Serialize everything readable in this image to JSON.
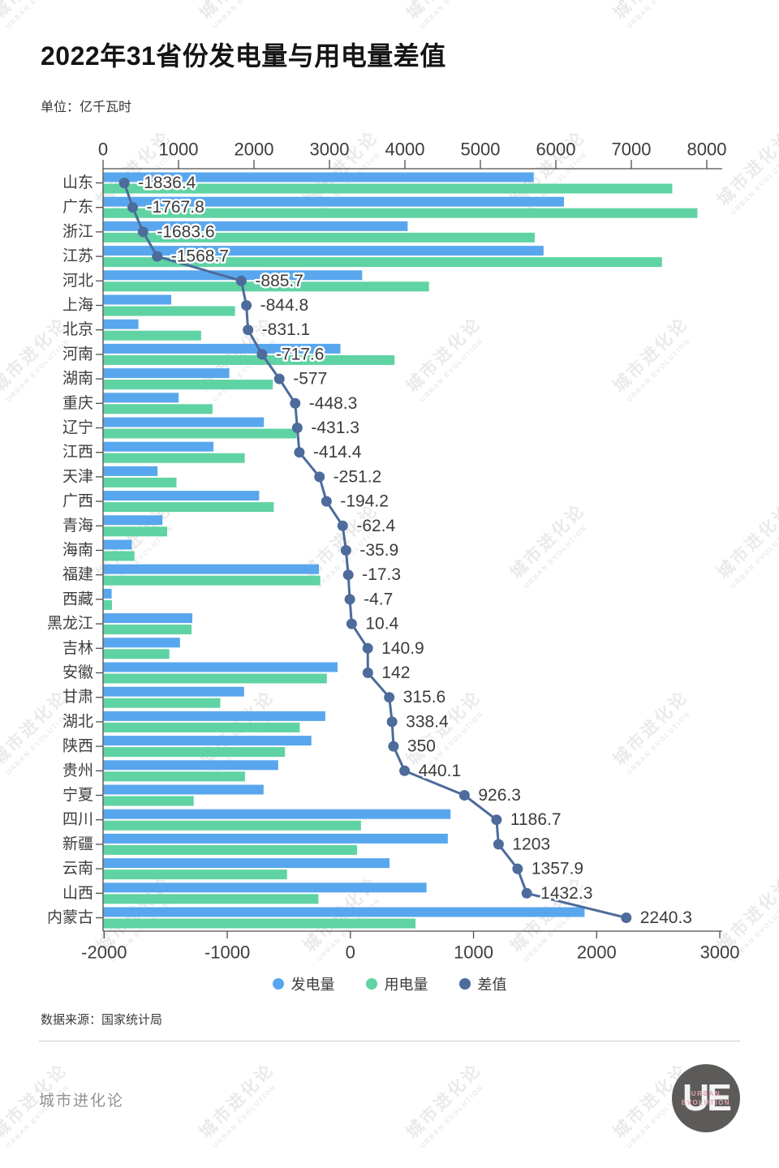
{
  "page": {
    "title": "2022年31省份发电量与用电量差值",
    "unit": "单位：亿千瓦时",
    "source": "数据来源：国家统计局",
    "brand": "城市进化论",
    "watermark": {
      "cn": "城市进化论",
      "en": "URBAN EVOLUTION"
    },
    "logo": {
      "monogram": "UE",
      "line1": "URBAN",
      "line2": "EVOLUTION"
    }
  },
  "colors": {
    "generation": "#58a7ee",
    "consumption": "#5fd3a3",
    "diff": "#4d6b9b",
    "axis": "#4d4d4d",
    "text": "#3b3b3b"
  },
  "legend": [
    {
      "id": "generation",
      "label": "发电量",
      "color": "#58a7ee"
    },
    {
      "id": "consumption",
      "label": "用电量",
      "color": "#5fd3a3"
    },
    {
      "id": "diff",
      "label": "差值",
      "color": "#4d6b9b"
    }
  ],
  "chart_data": {
    "type": "bar",
    "subtype": "horizontal grouped bars + line on secondary axis",
    "unit": "亿千瓦时",
    "grid": false,
    "legend_position": "bottom",
    "categories": [
      "山东",
      "广东",
      "浙江",
      "江苏",
      "河北",
      "上海",
      "北京",
      "河南",
      "湖南",
      "重庆",
      "辽宁",
      "江西",
      "天津",
      "广西",
      "青海",
      "海南",
      "福建",
      "西藏",
      "黑龙江",
      "吉林",
      "安徽",
      "甘肃",
      "湖北",
      "陕西",
      "贵州",
      "宁夏",
      "四川",
      "新疆",
      "云南",
      "山西",
      "内蒙古"
    ],
    "series": [
      {
        "name": "发电量",
        "type": "bar",
        "x_axis": "top",
        "color": "#58a7ee",
        "values": [
          5699.9,
          6101.6,
          4030.0,
          5830.8,
          3426.9,
          897.7,
          462.0,
          3138.8,
          1666.4,
          995.8,
          2124.9,
          1456.8,
          715.5,
          2061.9,
          780.9,
          374.2,
          2854.6,
          107.3,
          1176.6,
          1013.2,
          3100.9,
          1862.4,
          2938.9,
          2754.2,
          2314.6,
          2120.7,
          4598.2,
          4562.1,
          3789.4,
          4279.9,
          6374.4
        ]
      },
      {
        "name": "用电量",
        "type": "bar",
        "x_axis": "top",
        "color": "#5fd3a3",
        "values": [
          7536.3,
          7869.4,
          5713.6,
          7399.5,
          4312.6,
          1742.5,
          1293.1,
          3856.4,
          2243.4,
          1444.1,
          2556.2,
          1871.2,
          966.7,
          2256.1,
          843.3,
          410.1,
          2871.9,
          112.0,
          1166.2,
          872.3,
          2958.9,
          1546.8,
          2600.5,
          2404.2,
          1874.5,
          1194.4,
          3411.5,
          3359.1,
          2431.5,
          2847.6,
          4134.1
        ]
      },
      {
        "name": "差值",
        "type": "line",
        "x_axis": "bottom",
        "color": "#4d6b9b",
        "values": [
          -1836.4,
          -1767.8,
          -1683.6,
          -1568.7,
          -885.7,
          -844.8,
          -831.1,
          -717.6,
          -577,
          -448.3,
          -431.3,
          -414.4,
          -251.2,
          -194.2,
          -62.4,
          -35.9,
          -17.3,
          -4.7,
          10.4,
          140.9,
          142,
          315.6,
          338.4,
          350,
          440.1,
          926.3,
          1186.7,
          1203,
          1357.9,
          1432.3,
          2240.3
        ],
        "point_labels": [
          "-1836.4",
          "-1767.8",
          "-1683.6",
          "-1568.7",
          "-885.7",
          "-844.8",
          "-831.1",
          "-717.6",
          "-577",
          "-448.3",
          "-431.3",
          "-414.4",
          "-251.2",
          "-194.2",
          "-62.4",
          "-35.9",
          "-17.3",
          "-4.7",
          "10.4",
          "140.9",
          "142",
          "315.6",
          "338.4",
          "350",
          "440.1",
          "926.3",
          "1186.7",
          "1203",
          "1357.9",
          "1432.3",
          "2240.3"
        ]
      }
    ],
    "axes": {
      "top": {
        "min": 0,
        "max": 8000,
        "ticks": [
          0,
          1000,
          2000,
          3000,
          4000,
          5000,
          6000,
          7000,
          8000
        ]
      },
      "bottom": {
        "min": -2000,
        "max": 3000,
        "ticks": [
          -2000,
          -1000,
          0,
          1000,
          2000,
          3000
        ]
      }
    }
  }
}
